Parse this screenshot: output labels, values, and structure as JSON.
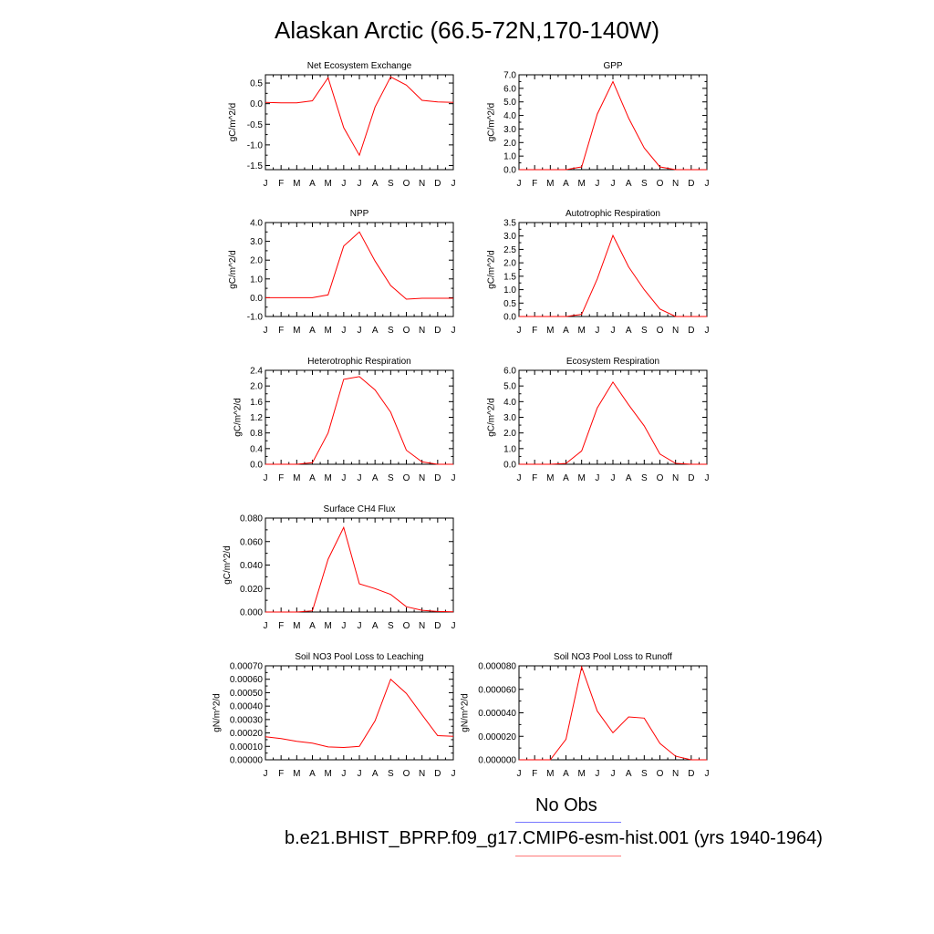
{
  "title": "Alaskan Arctic (66.5-72N,170-140W)",
  "months": [
    "J",
    "F",
    "M",
    "A",
    "M",
    "J",
    "J",
    "A",
    "S",
    "O",
    "N",
    "D",
    "J"
  ],
  "colors": {
    "model": "#ff0000",
    "obs": "#3333ff"
  },
  "legend": {
    "obs_label": "No Obs",
    "model_label": "b.e21.BHIST_BPRP.f09_g17.CMIP6-esm-hist.001 (yrs 1940-1964)"
  },
  "chart_data": [
    {
      "type": "line",
      "title": "Net Ecosystem Exchange",
      "ylabel": "gC/m^2/d",
      "ylim": [
        -1.6,
        0.7
      ],
      "yticks": [
        0.5,
        0.0,
        -0.5,
        -1.0,
        -1.5
      ],
      "ytick_labels": [
        "0.5",
        "0.0",
        "-0.5",
        "-1.0",
        "-1.5"
      ],
      "x": [
        "J",
        "F",
        "M",
        "A",
        "M",
        "J",
        "J",
        "A",
        "S",
        "O",
        "N",
        "D",
        "J"
      ],
      "values": [
        0.03,
        0.02,
        0.02,
        0.07,
        0.63,
        -0.58,
        -1.25,
        -0.08,
        0.65,
        0.45,
        0.08,
        0.04,
        0.03
      ]
    },
    {
      "type": "line",
      "title": "GPP",
      "ylabel": "gC/m^2/d",
      "ylim": [
        0,
        7
      ],
      "yticks": [
        0,
        1,
        2,
        3,
        4,
        5,
        6,
        7
      ],
      "ytick_labels": [
        "0.0",
        "1.0",
        "2.0",
        "3.0",
        "4.0",
        "5.0",
        "6.0",
        "7.0"
      ],
      "x": [
        "J",
        "F",
        "M",
        "A",
        "M",
        "J",
        "J",
        "A",
        "S",
        "O",
        "N",
        "D",
        "J"
      ],
      "values": [
        0,
        0,
        0,
        0,
        0.2,
        4.1,
        6.5,
        3.8,
        1.6,
        0.2,
        0,
        0,
        0
      ]
    },
    {
      "type": "line",
      "title": "NPP",
      "ylabel": "gC/m^2/d",
      "ylim": [
        -1,
        4
      ],
      "yticks": [
        -1,
        0,
        1,
        2,
        3,
        4
      ],
      "ytick_labels": [
        "-1.0",
        "0.0",
        "1.0",
        "2.0",
        "3.0",
        "4.0"
      ],
      "x": [
        "J",
        "F",
        "M",
        "A",
        "M",
        "J",
        "J",
        "A",
        "S",
        "O",
        "N",
        "D",
        "J"
      ],
      "values": [
        0,
        0,
        0,
        0,
        0.15,
        2.75,
        3.5,
        1.95,
        0.65,
        -0.08,
        -0.03,
        -0.03,
        -0.03
      ]
    },
    {
      "type": "line",
      "title": "Autotrophic Respiration",
      "ylabel": "gC/m^2/d",
      "ylim": [
        0,
        3.5
      ],
      "yticks": [
        0,
        0.5,
        1.0,
        1.5,
        2.0,
        2.5,
        3.0,
        3.5
      ],
      "ytick_labels": [
        "0.0",
        "0.5",
        "1.0",
        "1.5",
        "2.0",
        "2.5",
        "3.0",
        "3.5"
      ],
      "x": [
        "J",
        "F",
        "M",
        "A",
        "M",
        "J",
        "J",
        "A",
        "S",
        "O",
        "N",
        "D",
        "J"
      ],
      "values": [
        0,
        0,
        0,
        0,
        0.08,
        1.4,
        3.02,
        1.85,
        1.0,
        0.28,
        0,
        0,
        0
      ]
    },
    {
      "type": "line",
      "title": "Heterotrophic Respiration",
      "ylabel": "gC/m^2/d",
      "ylim": [
        0,
        2.4
      ],
      "yticks": [
        0,
        0.4,
        0.8,
        1.2,
        1.6,
        2.0,
        2.4
      ],
      "ytick_labels": [
        "0.0",
        "0.4",
        "0.8",
        "1.2",
        "1.6",
        "2.0",
        "2.4"
      ],
      "x": [
        "J",
        "F",
        "M",
        "A",
        "M",
        "J",
        "J",
        "A",
        "S",
        "O",
        "N",
        "D",
        "J"
      ],
      "values": [
        0,
        0,
        0,
        0.04,
        0.8,
        2.17,
        2.24,
        1.9,
        1.33,
        0.36,
        0.06,
        0,
        0
      ]
    },
    {
      "type": "line",
      "title": "Ecosystem Respiration",
      "ylabel": "gC/m^2/d",
      "ylim": [
        0,
        6
      ],
      "yticks": [
        0,
        1,
        2,
        3,
        4,
        5,
        6
      ],
      "ytick_labels": [
        "0.0",
        "1.0",
        "2.0",
        "3.0",
        "4.0",
        "5.0",
        "6.0"
      ],
      "x": [
        "J",
        "F",
        "M",
        "A",
        "M",
        "J",
        "J",
        "A",
        "S",
        "O",
        "N",
        "D",
        "J"
      ],
      "values": [
        0,
        0,
        0,
        0.05,
        0.85,
        3.6,
        5.25,
        3.8,
        2.45,
        0.65,
        0.06,
        0,
        0
      ]
    },
    {
      "type": "line",
      "title": "Surface CH4 Flux",
      "ylabel": "gC/m^2/d",
      "ylim": [
        0,
        0.08
      ],
      "yticks": [
        0,
        0.02,
        0.04,
        0.06,
        0.08
      ],
      "ytick_labels": [
        "0.000",
        "0.020",
        "0.040",
        "0.060",
        "0.080"
      ],
      "x": [
        "J",
        "F",
        "M",
        "A",
        "M",
        "J",
        "J",
        "A",
        "S",
        "O",
        "N",
        "D",
        "J"
      ],
      "values": [
        0,
        0,
        0,
        0.001,
        0.045,
        0.072,
        0.024,
        0.02,
        0.015,
        0.0045,
        0.0015,
        0.0005,
        0.0002
      ]
    },
    {
      "type": "line",
      "title": "Soil NO3 Pool Loss to Leaching",
      "ylabel": "gN/m^2/d",
      "ylim": [
        0,
        0.0007
      ],
      "yticks": [
        0,
        0.0001,
        0.0002,
        0.0003,
        0.0004,
        0.0005,
        0.0006,
        0.0007
      ],
      "ytick_labels": [
        "0.00000",
        "0.00010",
        "0.00020",
        "0.00030",
        "0.00040",
        "0.00050",
        "0.00060",
        "0.00070"
      ],
      "x": [
        "J",
        "F",
        "M",
        "A",
        "M",
        "J",
        "J",
        "A",
        "S",
        "O",
        "N",
        "D",
        "J"
      ],
      "values": [
        0.000172,
        0.000158,
        0.000138,
        0.000124,
        9.6e-05,
        9.2e-05,
        0.0001,
        0.00029,
        0.0006,
        0.000495,
        0.000335,
        0.00018,
        0.000175
      ]
    },
    {
      "type": "line",
      "title": "Soil NO3 Pool Loss to Runoff",
      "ylabel": "gN/m^2/d",
      "ylim": [
        0,
        8e-05
      ],
      "yticks": [
        0,
        2e-05,
        4e-05,
        6e-05,
        8e-05
      ],
      "ytick_labels": [
        "0.000000",
        "0.000020",
        "0.000040",
        "0.000060",
        "0.000080"
      ],
      "x": [
        "J",
        "F",
        "M",
        "A",
        "M",
        "J",
        "J",
        "A",
        "S",
        "O",
        "N",
        "D",
        "J"
      ],
      "values": [
        0,
        0,
        0,
        1.75e-05,
        7.9e-05,
        4.15e-05,
        2.3e-05,
        3.65e-05,
        3.55e-05,
        1.4e-05,
        3e-06,
        0,
        0
      ]
    }
  ]
}
